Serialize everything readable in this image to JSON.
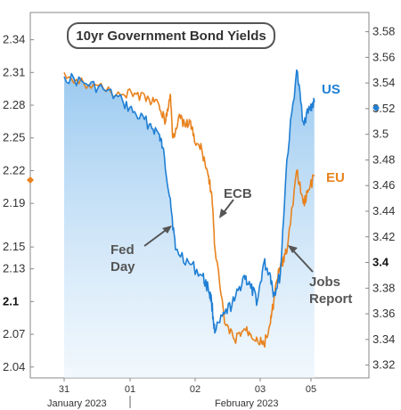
{
  "chart_data": {
    "type": "line",
    "title": "10yr Government Bond Yields",
    "left_axis": {
      "ticks": [
        "2.34",
        "2.31",
        "2.28",
        "2.25",
        "2.22",
        "2.19",
        "2.15",
        "2.13",
        "2.1",
        "2.07",
        "2.04"
      ],
      "bold_tick": "2.1",
      "range": [
        2.03,
        2.365
      ]
    },
    "right_axis": {
      "ticks": [
        "3.58",
        "3.56",
        "3.54",
        "3.52",
        "3.5",
        "3.48",
        "3.46",
        "3.44",
        "3.42",
        "3.4",
        "3.38",
        "3.36",
        "3.34",
        "3.32"
      ],
      "bold_tick": "3.4",
      "range": [
        3.31,
        3.595
      ]
    },
    "x_ticks": [
      "31",
      "01",
      "02",
      "03",
      "05"
    ],
    "x_periods": [
      "January 2023",
      "February 2023"
    ],
    "series": [
      {
        "name": "US",
        "axis": "right",
        "color": "#1f7fd4",
        "x": [
          0.0,
          0.3,
          0.6,
          0.9,
          1.1,
          1.3,
          1.45,
          1.5,
          1.62,
          1.7,
          1.9,
          2.1,
          2.2,
          2.25,
          2.3,
          2.45,
          2.6,
          2.75,
          2.85,
          2.95,
          3.05,
          3.15,
          3.2,
          3.3,
          3.4,
          3.55,
          3.65,
          3.75,
          3.82
        ],
        "values": [
          3.545,
          3.54,
          3.535,
          3.525,
          3.515,
          3.508,
          3.5,
          3.49,
          3.45,
          3.41,
          3.4,
          3.39,
          3.38,
          3.37,
          3.345,
          3.36,
          3.37,
          3.39,
          3.38,
          3.37,
          3.4,
          3.39,
          3.375,
          3.39,
          3.48,
          3.55,
          3.51,
          3.52,
          3.525
        ]
      },
      {
        "name": "EU",
        "axis": "left",
        "color": "#e8821e",
        "x": [
          0.0,
          0.3,
          0.6,
          0.9,
          1.1,
          1.3,
          1.45,
          1.55,
          1.62,
          1.66,
          1.75,
          1.85,
          1.92,
          2.0,
          2.1,
          2.2,
          2.25,
          2.3,
          2.45,
          2.6,
          2.75,
          2.85,
          2.95,
          3.05,
          3.15,
          3.2,
          3.25,
          3.3,
          3.35,
          3.4,
          3.55,
          3.65,
          3.72,
          3.82
        ],
        "values": [
          2.31,
          2.3,
          2.295,
          2.29,
          2.29,
          2.285,
          2.28,
          2.265,
          2.29,
          2.25,
          2.27,
          2.26,
          2.265,
          2.245,
          2.24,
          2.215,
          2.2,
          2.15,
          2.08,
          2.065,
          2.075,
          2.07,
          2.065,
          2.06,
          2.08,
          2.1,
          2.12,
          2.13,
          2.14,
          2.145,
          2.22,
          2.19,
          2.2,
          2.215
        ]
      }
    ],
    "annotations": [
      {
        "text": [
          "Fed",
          "Day"
        ]
      },
      {
        "text": [
          "ECB"
        ]
      },
      {
        "text": [
          "Jobs",
          "Report"
        ]
      }
    ]
  }
}
